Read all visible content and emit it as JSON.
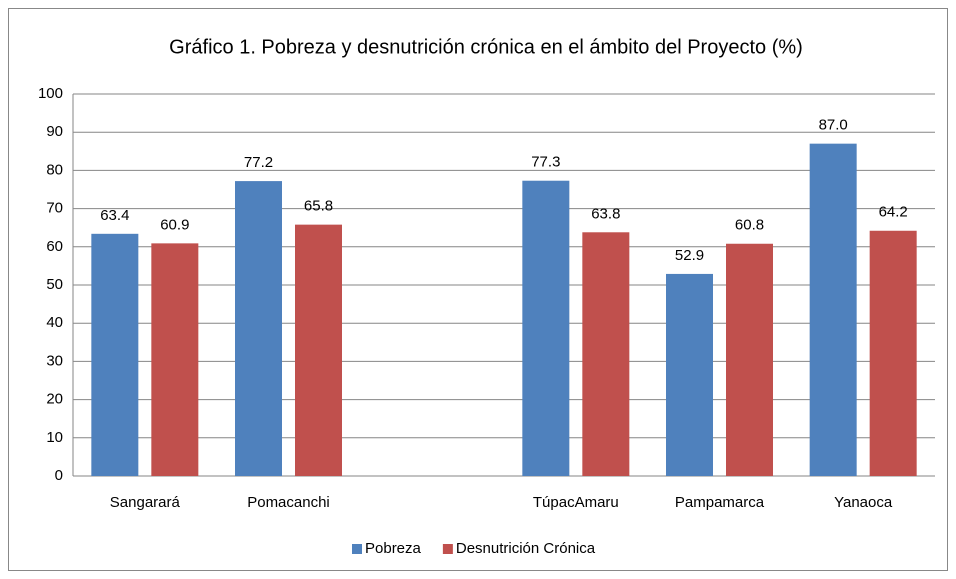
{
  "chart_data": {
    "type": "bar",
    "title": "Gráfico 1. Pobreza y desnutrición crónica en el ámbito del Proyecto (%)",
    "categories": [
      "Sangarará",
      "Pomacanchi",
      null,
      "TúpacAmaru",
      "Pampamarca",
      "Yanaoca"
    ],
    "series": [
      {
        "name": "Pobreza",
        "color": "#4f81bd",
        "values": [
          63.4,
          77.2,
          null,
          77.3,
          52.9,
          87.0
        ],
        "value_labels": [
          "63.4",
          "77.2",
          null,
          "77.3",
          "52.9",
          "87.0"
        ]
      },
      {
        "name": "Desnutrición Crónica",
        "color": "#c0504d",
        "values": [
          60.9,
          65.8,
          null,
          63.8,
          60.8,
          64.2
        ],
        "value_labels": [
          "60.9",
          "65.8",
          null,
          "63.8",
          "60.8",
          "64.2"
        ]
      }
    ],
    "ylim": [
      0,
      100
    ],
    "yticks": [
      0,
      10,
      20,
      30,
      40,
      50,
      60,
      70,
      80,
      90,
      100
    ],
    "grid": true,
    "legend": "bottom"
  }
}
